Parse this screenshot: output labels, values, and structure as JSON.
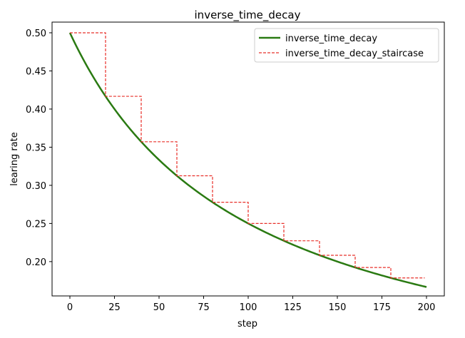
{
  "chart_data": {
    "type": "line",
    "title": "inverse_time_decay",
    "xlabel": "step",
    "ylabel": "learing rate",
    "xlim": [
      -10,
      210
    ],
    "ylim": [
      0.155,
      0.514
    ],
    "xticks": [
      0,
      25,
      50,
      75,
      100,
      125,
      150,
      175,
      200
    ],
    "yticks": [
      0.2,
      0.25,
      0.3,
      0.35,
      0.4,
      0.45,
      0.5
    ],
    "ytick_labels": [
      "0.20",
      "0.25",
      "0.30",
      "0.35",
      "0.40",
      "0.45",
      "0.50"
    ],
    "grid": false,
    "legend_position": "top-right",
    "series": [
      {
        "name": "inverse_time_decay",
        "style": "solid",
        "color": "#2a7a12",
        "x": [
          0,
          10,
          20,
          30,
          40,
          50,
          60,
          70,
          80,
          90,
          100,
          110,
          120,
          130,
          140,
          150,
          160,
          170,
          180,
          190,
          200
        ],
        "y": [
          0.5,
          0.4545,
          0.4167,
          0.3846,
          0.3571,
          0.3333,
          0.3125,
          0.2941,
          0.2778,
          0.2632,
          0.25,
          0.2381,
          0.2273,
          0.2174,
          0.2083,
          0.2,
          0.1923,
          0.1852,
          0.1786,
          0.1724,
          0.1667
        ]
      },
      {
        "name": "inverse_time_decay_staircase",
        "style": "dashed",
        "color": "#e8302a",
        "x": [
          0,
          20,
          20,
          40,
          40,
          60,
          60,
          80,
          80,
          100,
          100,
          120,
          120,
          140,
          140,
          160,
          160,
          180,
          180,
          199
        ],
        "y": [
          0.5,
          0.5,
          0.4167,
          0.4167,
          0.3571,
          0.3571,
          0.3125,
          0.3125,
          0.2778,
          0.2778,
          0.25,
          0.25,
          0.2273,
          0.2273,
          0.2083,
          0.2083,
          0.1923,
          0.1923,
          0.1786,
          0.1786
        ]
      }
    ]
  }
}
